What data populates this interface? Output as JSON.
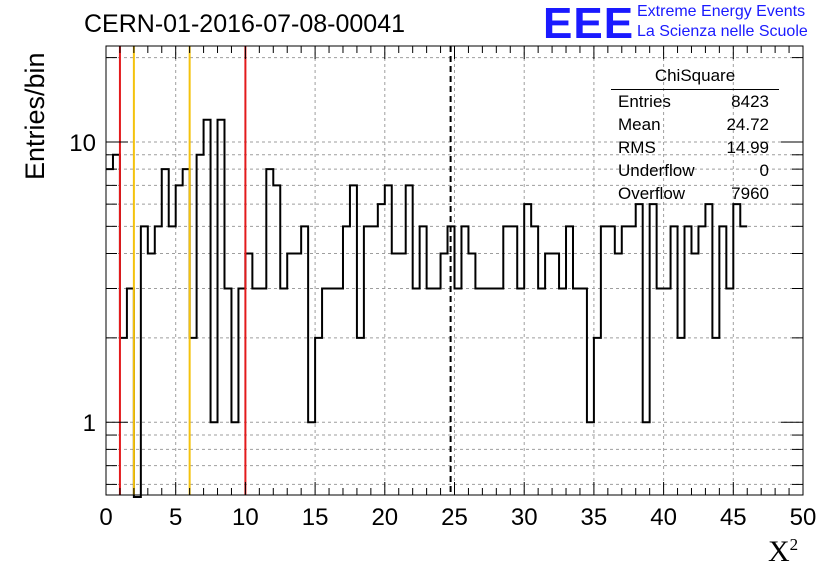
{
  "title": "CERN-01-2016-07-08-00041",
  "logo": {
    "mark": "EEE",
    "line1": "Extreme Energy Events",
    "line2": "La Scienza nelle Scuole"
  },
  "colors": {
    "histogram": "#000000",
    "red_line": "#e31a1c",
    "yellow_line": "#f4c20d",
    "logo": "#1a1aff",
    "grid": "#9e9e9e"
  },
  "stats": {
    "title": "ChiSquare",
    "rows": [
      {
        "key": "Entries",
        "value": "8423"
      },
      {
        "key": "Mean",
        "value": "24.72"
      },
      {
        "key": "RMS",
        "value": "14.99"
      },
      {
        "key": "Underflow",
        "value": "0"
      },
      {
        "key": "Overflow",
        "value": "7960"
      }
    ]
  },
  "chart_data": {
    "type": "histogram",
    "xlabel": "X",
    "xlabel_superscript": "2",
    "ylabel": "Entries/bin",
    "xlim": [
      0,
      50
    ],
    "ylim": [
      0.55,
      22
    ],
    "y_scale": "log",
    "grid": true,
    "bin_width": 0.5,
    "x_ticks": [
      0,
      5,
      10,
      15,
      20,
      25,
      30,
      35,
      40,
      45,
      50
    ],
    "y_ticks": [
      1,
      10
    ],
    "bin_contents": [
      8,
      9,
      2,
      3,
      0,
      5,
      4,
      5,
      8,
      5,
      7,
      8,
      2,
      9,
      12,
      1,
      12,
      3,
      1,
      3,
      4,
      3,
      3,
      8,
      7,
      3,
      4,
      4,
      5,
      1,
      2,
      3,
      3,
      3,
      5,
      7,
      2,
      5,
      5,
      6,
      7,
      4,
      4,
      7,
      3,
      5,
      3,
      3,
      4,
      5,
      3,
      5,
      4,
      3,
      3,
      3,
      3,
      5,
      5,
      3,
      6,
      5,
      3,
      4,
      4,
      3,
      5,
      3,
      3,
      1,
      2,
      5,
      5,
      4,
      5,
      5,
      6,
      1,
      6,
      3,
      3,
      5,
      2,
      5,
      4,
      5,
      6,
      2,
      5,
      3,
      6,
      5
    ],
    "vertical_lines": [
      {
        "x": 1.0,
        "color": "red",
        "style": "solid"
      },
      {
        "x": 2.0,
        "color": "yellow",
        "style": "solid"
      },
      {
        "x": 6.0,
        "color": "yellow",
        "style": "solid"
      },
      {
        "x": 10.0,
        "color": "red",
        "style": "solid"
      },
      {
        "x": 24.72,
        "color": "black",
        "style": "dashed"
      }
    ]
  }
}
